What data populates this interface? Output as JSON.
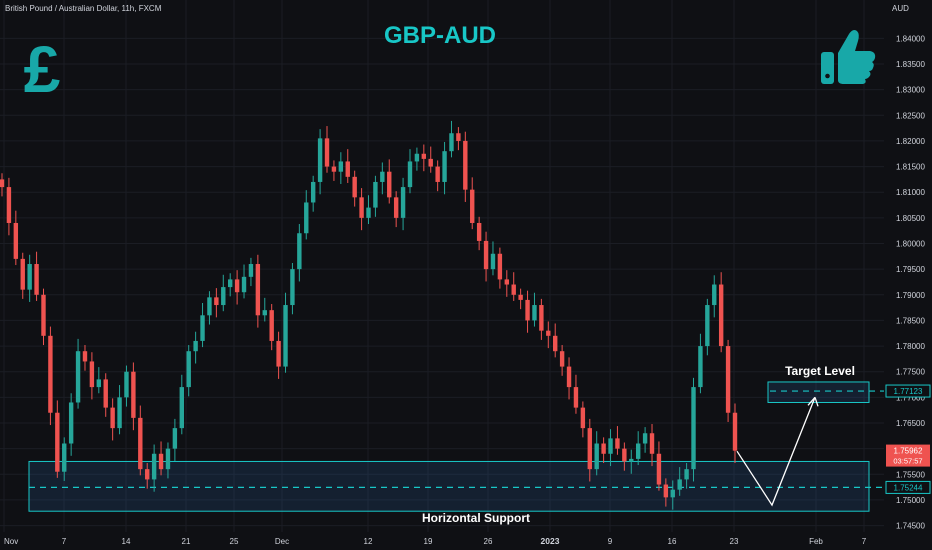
{
  "header": {
    "symbol": "British Pound / Australian Dollar, 11h, FXCM",
    "title": "GBP-AUD",
    "currency": "AUD"
  },
  "icons": {
    "left": "pound-sign-icon",
    "right": "thumbs-up-icon"
  },
  "colors": {
    "up": "#26a69a",
    "down": "#ef5350",
    "accent": "#18c7c7",
    "background": "#0f1014",
    "grid": "#1b1d24"
  },
  "annotations": {
    "target_label": "Target Level",
    "support_label": "Horizontal Support"
  },
  "chart_data": {
    "type": "candlestick",
    "title": "GBP-AUD",
    "symbol": "British Pound / Australian Dollar, 11h, FXCM",
    "ylabel": "AUD",
    "ylim": [
      1.7455,
      1.8428
    ],
    "y_ticks": [
      "1.84000",
      "1.83500",
      "1.83000",
      "1.82500",
      "1.82000",
      "1.81500",
      "1.81000",
      "1.80500",
      "1.80000",
      "1.79500",
      "1.79000",
      "1.78500",
      "1.78000",
      "1.77500",
      "1.77000",
      "1.76500",
      "1.76000",
      "1.75500",
      "1.75000",
      "1.74500"
    ],
    "x_ticks": [
      "Nov",
      "7",
      "14",
      "21",
      "25",
      "Dec",
      "12",
      "19",
      "26",
      "2023",
      "9",
      "16",
      "23",
      "Feb",
      "7"
    ],
    "price_tags": {
      "target": "1.77123",
      "support": "1.75244",
      "last": "1.75962",
      "countdown": "03:57:57"
    },
    "levels": {
      "target": 1.77123,
      "support": 1.75244,
      "last": 1.75962
    },
    "zones": {
      "support": {
        "top": 1.7575,
        "bottom": 1.7478,
        "label": "Horizontal Support"
      },
      "target": {
        "top": 1.773,
        "bottom": 1.769,
        "label": "Target Level"
      }
    },
    "projection": [
      1.7595,
      1.749,
      1.77
    ],
    "closes": [
      1.811,
      1.804,
      1.797,
      1.791,
      1.796,
      1.79,
      1.782,
      1.767,
      1.7555,
      1.761,
      1.769,
      1.779,
      1.777,
      1.772,
      1.7735,
      1.768,
      1.764,
      1.77,
      1.775,
      1.766,
      1.756,
      1.754,
      1.759,
      1.756,
      1.76,
      1.764,
      1.772,
      1.779,
      1.781,
      1.786,
      1.7895,
      1.788,
      1.7915,
      1.793,
      1.7905,
      1.7935,
      1.796,
      1.786,
      1.787,
      1.781,
      1.776,
      1.788,
      1.795,
      1.802,
      1.808,
      1.812,
      1.8205,
      1.815,
      1.814,
      1.816,
      1.813,
      1.809,
      1.805,
      1.807,
      1.812,
      1.814,
      1.809,
      1.805,
      1.811,
      1.816,
      1.8175,
      1.8165,
      1.815,
      1.812,
      1.818,
      1.8215,
      1.82,
      1.8105,
      1.804,
      1.8005,
      1.795,
      1.798,
      1.793,
      1.792,
      1.79,
      1.789,
      1.785,
      1.788,
      1.783,
      1.782,
      1.779,
      1.776,
      1.772,
      1.768,
      1.764,
      1.756,
      1.761,
      1.759,
      1.762,
      1.76,
      1.7575,
      1.758,
      1.761,
      1.763,
      1.759,
      1.753,
      1.7505,
      1.752,
      1.754,
      1.756,
      1.772,
      1.78,
      1.788,
      1.792,
      1.78,
      1.767,
      1.7596
    ]
  }
}
